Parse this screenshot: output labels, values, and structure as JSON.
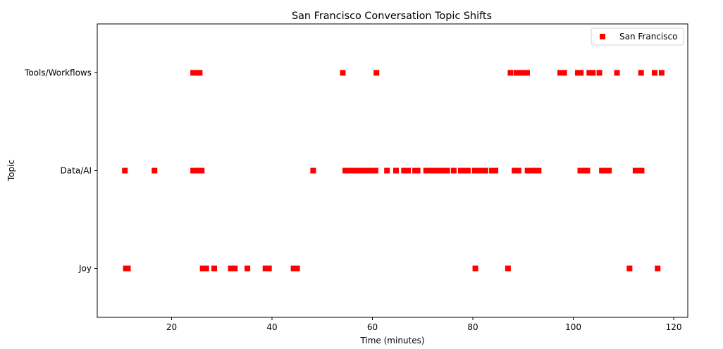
{
  "chart_data": {
    "type": "scatter",
    "title": "San Francisco Conversation Topic Shifts",
    "xlabel": "Time (minutes)",
    "ylabel": "Topic",
    "xlim": [
      5.2,
      122.8
    ],
    "x_ticks": [
      20,
      40,
      60,
      80,
      100,
      120
    ],
    "categories": [
      "Joy",
      "Data/AI",
      "Tools/Workflows"
    ],
    "ylim": [
      -0.5,
      2.5
    ],
    "grid": false,
    "legend_position": "upper right",
    "series": [
      {
        "name": "San Francisco",
        "color": "#ff0000",
        "marker": "square",
        "points": [
          {
            "x": 10.9,
            "y": "Joy"
          },
          {
            "x": 11.3,
            "y": "Joy"
          },
          {
            "x": 26.2,
            "y": "Joy"
          },
          {
            "x": 26.9,
            "y": "Joy"
          },
          {
            "x": 28.5,
            "y": "Joy"
          },
          {
            "x": 31.8,
            "y": "Joy"
          },
          {
            "x": 32.6,
            "y": "Joy"
          },
          {
            "x": 35.1,
            "y": "Joy"
          },
          {
            "x": 38.7,
            "y": "Joy"
          },
          {
            "x": 39.4,
            "y": "Joy"
          },
          {
            "x": 44.3,
            "y": "Joy"
          },
          {
            "x": 45.0,
            "y": "Joy"
          },
          {
            "x": 80.5,
            "y": "Joy"
          },
          {
            "x": 87.0,
            "y": "Joy"
          },
          {
            "x": 111.2,
            "y": "Joy"
          },
          {
            "x": 116.8,
            "y": "Joy"
          },
          {
            "x": 10.7,
            "y": "Data/AI"
          },
          {
            "x": 16.6,
            "y": "Data/AI"
          },
          {
            "x": 24.3,
            "y": "Data/AI"
          },
          {
            "x": 25.1,
            "y": "Data/AI"
          },
          {
            "x": 26.0,
            "y": "Data/AI"
          },
          {
            "x": 48.2,
            "y": "Data/AI"
          },
          {
            "x": 54.6,
            "y": "Data/AI"
          },
          {
            "x": 55.3,
            "y": "Data/AI"
          },
          {
            "x": 56.0,
            "y": "Data/AI"
          },
          {
            "x": 56.7,
            "y": "Data/AI"
          },
          {
            "x": 57.4,
            "y": "Data/AI"
          },
          {
            "x": 58.2,
            "y": "Data/AI"
          },
          {
            "x": 58.7,
            "y": "Data/AI"
          },
          {
            "x": 59.8,
            "y": "Data/AI"
          },
          {
            "x": 60.6,
            "y": "Data/AI"
          },
          {
            "x": 62.9,
            "y": "Data/AI"
          },
          {
            "x": 64.7,
            "y": "Data/AI"
          },
          {
            "x": 66.3,
            "y": "Data/AI"
          },
          {
            "x": 67.1,
            "y": "Data/AI"
          },
          {
            "x": 68.5,
            "y": "Data/AI"
          },
          {
            "x": 69.0,
            "y": "Data/AI"
          },
          {
            "x": 70.7,
            "y": "Data/AI"
          },
          {
            "x": 71.5,
            "y": "Data/AI"
          },
          {
            "x": 72.3,
            "y": "Data/AI"
          },
          {
            "x": 73.0,
            "y": "Data/AI"
          },
          {
            "x": 73.7,
            "y": "Data/AI"
          },
          {
            "x": 74.4,
            "y": "Data/AI"
          },
          {
            "x": 74.9,
            "y": "Data/AI"
          },
          {
            "x": 76.2,
            "y": "Data/AI"
          },
          {
            "x": 77.6,
            "y": "Data/AI"
          },
          {
            "x": 78.3,
            "y": "Data/AI"
          },
          {
            "x": 79.0,
            "y": "Data/AI"
          },
          {
            "x": 80.4,
            "y": "Data/AI"
          },
          {
            "x": 81.1,
            "y": "Data/AI"
          },
          {
            "x": 81.8,
            "y": "Data/AI"
          },
          {
            "x": 82.5,
            "y": "Data/AI"
          },
          {
            "x": 83.8,
            "y": "Data/AI"
          },
          {
            "x": 84.5,
            "y": "Data/AI"
          },
          {
            "x": 88.3,
            "y": "Data/AI"
          },
          {
            "x": 89.1,
            "y": "Data/AI"
          },
          {
            "x": 90.9,
            "y": "Data/AI"
          },
          {
            "x": 91.7,
            "y": "Data/AI"
          },
          {
            "x": 92.4,
            "y": "Data/AI"
          },
          {
            "x": 93.1,
            "y": "Data/AI"
          },
          {
            "x": 101.4,
            "y": "Data/AI"
          },
          {
            "x": 102.2,
            "y": "Data/AI"
          },
          {
            "x": 102.8,
            "y": "Data/AI"
          },
          {
            "x": 105.7,
            "y": "Data/AI"
          },
          {
            "x": 106.4,
            "y": "Data/AI"
          },
          {
            "x": 107.1,
            "y": "Data/AI"
          },
          {
            "x": 112.4,
            "y": "Data/AI"
          },
          {
            "x": 113.1,
            "y": "Data/AI"
          },
          {
            "x": 113.6,
            "y": "Data/AI"
          },
          {
            "x": 24.3,
            "y": "Tools/Workflows"
          },
          {
            "x": 25.0,
            "y": "Tools/Workflows"
          },
          {
            "x": 25.6,
            "y": "Tools/Workflows"
          },
          {
            "x": 54.1,
            "y": "Tools/Workflows"
          },
          {
            "x": 60.8,
            "y": "Tools/Workflows"
          },
          {
            "x": 87.5,
            "y": "Tools/Workflows"
          },
          {
            "x": 88.7,
            "y": "Tools/Workflows"
          },
          {
            "x": 89.4,
            "y": "Tools/Workflows"
          },
          {
            "x": 90.1,
            "y": "Tools/Workflows"
          },
          {
            "x": 90.8,
            "y": "Tools/Workflows"
          },
          {
            "x": 97.4,
            "y": "Tools/Workflows"
          },
          {
            "x": 98.2,
            "y": "Tools/Workflows"
          },
          {
            "x": 100.9,
            "y": "Tools/Workflows"
          },
          {
            "x": 101.5,
            "y": "Tools/Workflows"
          },
          {
            "x": 103.2,
            "y": "Tools/Workflows"
          },
          {
            "x": 103.9,
            "y": "Tools/Workflows"
          },
          {
            "x": 105.2,
            "y": "Tools/Workflows"
          },
          {
            "x": 108.7,
            "y": "Tools/Workflows"
          },
          {
            "x": 113.5,
            "y": "Tools/Workflows"
          },
          {
            "x": 116.2,
            "y": "Tools/Workflows"
          },
          {
            "x": 117.6,
            "y": "Tools/Workflows"
          }
        ]
      }
    ]
  }
}
